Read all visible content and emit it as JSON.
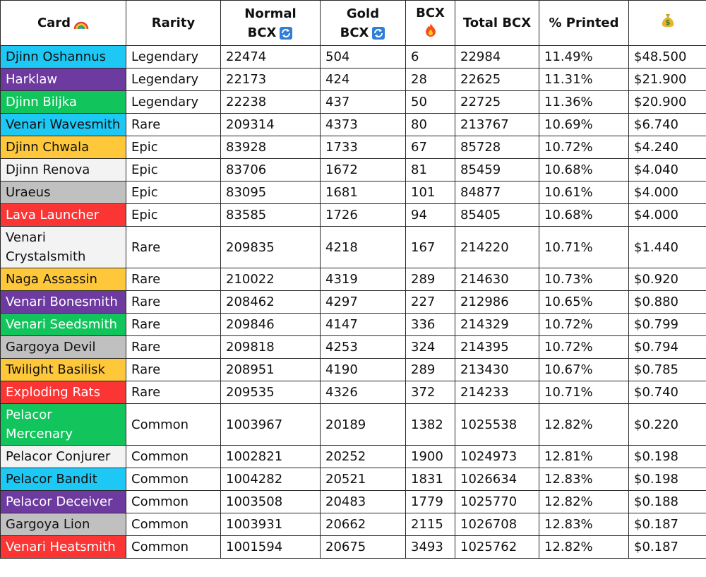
{
  "table": {
    "headers": [
      "Card",
      "Rarity",
      "Normal BCX",
      "Gold BCX",
      "BCX",
      "Total BCX",
      "% Printed"
    ],
    "rows": [
      {
        "card": "Djinn Oshannus",
        "color": "#1ec8f5",
        "rarity": "Legendary",
        "normal": 22474,
        "gold": 504,
        "burned": 6,
        "total": 22984,
        "printed": "11.49%",
        "price": "$48.500"
      },
      {
        "card": "Harklaw",
        "color": "#6d3aa0",
        "rarity": "Legendary",
        "normal": 22173,
        "gold": 424,
        "burned": 28,
        "total": 22625,
        "printed": "11.31%",
        "price": "$21.900"
      },
      {
        "card": "Djinn Biljka",
        "color": "#12c45c",
        "rarity": "Legendary",
        "normal": 22238,
        "gold": 437,
        "burned": 50,
        "total": 22725,
        "printed": "11.36%",
        "price": "$20.900"
      },
      {
        "card": "Venari Wavesmith",
        "color": "#1ec8f5",
        "rarity": "Rare",
        "normal": 209314,
        "gold": 4373,
        "burned": 80,
        "total": 213767,
        "printed": "10.69%",
        "price": "$6.740"
      },
      {
        "card": "Djinn Chwala",
        "color": "#ffc83a",
        "rarity": "Epic",
        "normal": 83928,
        "gold": 1733,
        "burned": 67,
        "total": 85728,
        "printed": "10.72%",
        "price": "$4.240"
      },
      {
        "card": "Djinn Renova",
        "color": "#f3f3f3",
        "rarity": "Epic",
        "normal": 83706,
        "gold": 1672,
        "burned": 81,
        "total": 85459,
        "printed": "10.68%",
        "price": "$4.040"
      },
      {
        "card": "Uraeus",
        "color": "#c0c0c0",
        "rarity": "Epic",
        "normal": 83095,
        "gold": 1681,
        "burned": 101,
        "total": 84877,
        "printed": "10.61%",
        "price": "$4.000"
      },
      {
        "card": "Lava Launcher",
        "color": "#fb3434",
        "rarity": "Epic",
        "normal": 83585,
        "gold": 1726,
        "burned": 94,
        "total": 85405,
        "printed": "10.68%",
        "price": "$4.000"
      },
      {
        "card": "Venari Crystalsmith",
        "color": "#f3f3f3",
        "rarity": "Rare",
        "normal": 209835,
        "gold": 4218,
        "burned": 167,
        "total": 214220,
        "printed": "10.71%",
        "price": "$1.440"
      },
      {
        "card": "Naga Assassin",
        "color": "#ffc83a",
        "rarity": "Rare",
        "normal": 210022,
        "gold": 4319,
        "burned": 289,
        "total": 214630,
        "printed": "10.73%",
        "price": "$0.920"
      },
      {
        "card": "Venari Bonesmith",
        "color": "#6d3aa0",
        "rarity": "Rare",
        "normal": 208462,
        "gold": 4297,
        "burned": 227,
        "total": 212986,
        "printed": "10.65%",
        "price": "$0.880"
      },
      {
        "card": "Venari Seedsmith",
        "color": "#12c45c",
        "rarity": "Rare",
        "normal": 209846,
        "gold": 4147,
        "burned": 336,
        "total": 214329,
        "printed": "10.72%",
        "price": "$0.799"
      },
      {
        "card": "Gargoya Devil",
        "color": "#c0c0c0",
        "rarity": "Rare",
        "normal": 209818,
        "gold": 4253,
        "burned": 324,
        "total": 214395,
        "printed": "10.72%",
        "price": "$0.794"
      },
      {
        "card": "Twilight Basilisk",
        "color": "#ffc83a",
        "rarity": "Rare",
        "normal": 208951,
        "gold": 4190,
        "burned": 289,
        "total": 213430,
        "printed": "10.67%",
        "price": "$0.785"
      },
      {
        "card": "Exploding Rats",
        "color": "#fb3434",
        "rarity": "Rare",
        "normal": 209535,
        "gold": 4326,
        "burned": 372,
        "total": 214233,
        "printed": "10.71%",
        "price": "$0.740"
      },
      {
        "card": "Pelacor Mercenary",
        "color": "#12c45c",
        "rarity": "Common",
        "normal": 1003967,
        "gold": 20189,
        "burned": 1382,
        "total": 1025538,
        "printed": "12.82%",
        "price": "$0.220"
      },
      {
        "card": "Pelacor Conjurer",
        "color": "#f3f3f3",
        "rarity": "Common",
        "normal": 1002821,
        "gold": 20252,
        "burned": 1900,
        "total": 1024973,
        "printed": "12.81%",
        "price": "$0.198"
      },
      {
        "card": "Pelacor Bandit",
        "color": "#1ec8f5",
        "rarity": "Common",
        "normal": 1004282,
        "gold": 20521,
        "burned": 1831,
        "total": 1026634,
        "printed": "12.83%",
        "price": "$0.198"
      },
      {
        "card": "Pelacor Deceiver",
        "color": "#6d3aa0",
        "rarity": "Common",
        "normal": 1003508,
        "gold": 20483,
        "burned": 1779,
        "total": 1025770,
        "printed": "12.82%",
        "price": "$0.188"
      },
      {
        "card": "Gargoya Lion",
        "color": "#c0c0c0",
        "rarity": "Common",
        "normal": 1003931,
        "gold": 20662,
        "burned": 2115,
        "total": 1026708,
        "printed": "12.83%",
        "price": "$0.187"
      },
      {
        "card": "Venari Heatsmith",
        "color": "#fb3434",
        "rarity": "Common",
        "normal": 1001594,
        "gold": 20675,
        "burned": 3493,
        "total": 1025762,
        "printed": "12.82%",
        "price": "$0.187"
      }
    ]
  }
}
